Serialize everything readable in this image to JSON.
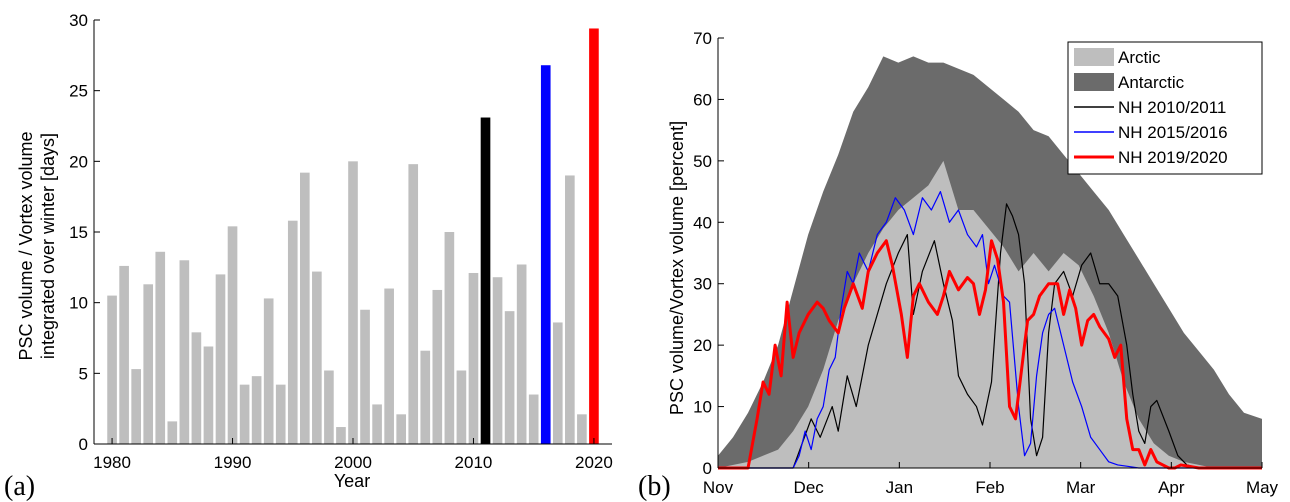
{
  "chart_data": [
    {
      "type": "bar",
      "panel_label": "(a)",
      "xlabel": "Year",
      "ylabel_line1": "PSC volume / Vortex volume",
      "ylabel_line2": "integrated over winter [days]",
      "ylim": [
        0,
        30
      ],
      "yticks": [
        0,
        5,
        10,
        15,
        20,
        25,
        30
      ],
      "xticks": [
        1980,
        1990,
        2000,
        2010,
        2020
      ],
      "xlim": [
        1978.5,
        2021.5
      ],
      "years": [
        1980,
        1981,
        1982,
        1983,
        1984,
        1985,
        1986,
        1987,
        1988,
        1989,
        1990,
        1991,
        1992,
        1993,
        1994,
        1995,
        1996,
        1997,
        1998,
        1999,
        2000,
        2001,
        2002,
        2003,
        2004,
        2005,
        2006,
        2007,
        2008,
        2009,
        2010,
        2011,
        2012,
        2013,
        2014,
        2015,
        2016,
        2017,
        2018,
        2019,
        2020
      ],
      "values": [
        10.5,
        12.6,
        5.3,
        11.3,
        13.6,
        1.6,
        13.0,
        7.9,
        6.9,
        12.0,
        15.4,
        4.2,
        4.8,
        10.3,
        4.2,
        15.8,
        19.2,
        12.2,
        5.2,
        1.2,
        20.0,
        9.5,
        2.8,
        11.0,
        2.1,
        19.8,
        6.6,
        10.9,
        15.0,
        5.2,
        12.1,
        23.1,
        11.8,
        9.4,
        12.7,
        3.5,
        26.8,
        8.6,
        19.0,
        2.1,
        29.4
      ],
      "highlight": {
        "2011": "#000000",
        "2016": "#0000ff",
        "2020": "#ff0000"
      },
      "bar_color": "#bebebe",
      "grid": false
    },
    {
      "type": "area",
      "panel_label": "(b)",
      "ylabel": "PSC volume/Vortex volume [percent]",
      "ylim": [
        0,
        70
      ],
      "yticks": [
        0,
        10,
        20,
        30,
        40,
        50,
        60,
        70
      ],
      "xticks": [
        "Nov",
        "Dec",
        "Jan",
        "Feb",
        "Mar",
        "Apr",
        "May"
      ],
      "xlim_days": [
        0,
        181
      ],
      "legend_position": "top-right",
      "series": [
        {
          "name": "Arctic",
          "kind": "area",
          "color": "#bebebe",
          "x": [
            0,
            10,
            20,
            25,
            30,
            35,
            40,
            45,
            50,
            55,
            60,
            65,
            70,
            75,
            80,
            85,
            90,
            95,
            100,
            105,
            110,
            115,
            120,
            125,
            130,
            135,
            140,
            145,
            150,
            155,
            160,
            165,
            170,
            175,
            181
          ],
          "y": [
            0,
            1,
            3,
            6,
            10,
            16,
            24,
            30,
            35,
            39,
            42,
            44,
            46,
            50,
            42,
            42,
            39,
            36,
            32,
            35,
            32,
            35,
            33,
            28,
            22,
            14,
            8,
            4,
            2,
            1,
            0.5,
            0,
            0,
            0,
            0
          ]
        },
        {
          "name": "Antarctic",
          "kind": "area",
          "color": "#6b6b6b",
          "x": [
            0,
            5,
            10,
            15,
            20,
            25,
            30,
            35,
            40,
            45,
            50,
            55,
            60,
            65,
            70,
            75,
            80,
            85,
            90,
            95,
            100,
            105,
            110,
            115,
            120,
            125,
            130,
            135,
            140,
            145,
            150,
            155,
            160,
            165,
            170,
            175,
            181
          ],
          "y": [
            2,
            5,
            9,
            14,
            20,
            29,
            38,
            45,
            51,
            58,
            62,
            67,
            66,
            67,
            66,
            66,
            65,
            64,
            62,
            60,
            58,
            55,
            54,
            51,
            48,
            45,
            42,
            38,
            34,
            30,
            26,
            22,
            19,
            16,
            12,
            9,
            8
          ]
        },
        {
          "name": "NH 2010/2011",
          "kind": "line",
          "color": "#000000",
          "x": [
            0,
            25,
            28,
            31,
            34,
            38,
            40,
            43,
            46,
            50,
            53,
            56,
            60,
            63,
            65,
            68,
            72,
            75,
            78,
            80,
            83,
            86,
            88,
            91,
            94,
            96,
            98,
            100,
            102,
            104,
            106,
            108,
            110,
            112,
            115,
            118,
            121,
            124,
            127,
            130,
            133,
            136,
            138,
            140,
            142,
            144,
            146,
            150,
            153,
            156,
            160,
            165,
            181
          ],
          "y": [
            0,
            0,
            4,
            8,
            5,
            10,
            6,
            15,
            10,
            20,
            25,
            30,
            35,
            38,
            25,
            32,
            37,
            30,
            24,
            15,
            12,
            10,
            7,
            14,
            35,
            43,
            41,
            38,
            30,
            8,
            2,
            5,
            22,
            30,
            32,
            28,
            33,
            35,
            30,
            30,
            28,
            20,
            12,
            6,
            4,
            10,
            11,
            6,
            2,
            0.5,
            0,
            0,
            0
          ]
        },
        {
          "name": "NH 2015/2016",
          "kind": "line",
          "color": "#0000ff",
          "x": [
            0,
            25,
            27,
            29,
            31,
            33,
            35,
            37,
            39,
            41,
            43,
            45,
            47,
            50,
            53,
            56,
            59,
            62,
            65,
            68,
            71,
            74,
            77,
            80,
            83,
            86,
            88,
            90,
            92,
            95,
            97,
            100,
            102,
            104,
            106,
            108,
            110,
            112,
            115,
            118,
            121,
            124,
            127,
            130,
            133,
            136,
            140,
            145,
            150,
            181
          ],
          "y": [
            0,
            0,
            2,
            6,
            3,
            8,
            10,
            16,
            18,
            26,
            32,
            30,
            35,
            32,
            38,
            40,
            44,
            42,
            38,
            44,
            42,
            45,
            40,
            42,
            38,
            36,
            38,
            30,
            33,
            28,
            27,
            10,
            2,
            4,
            15,
            22,
            25,
            26,
            20,
            14,
            10,
            5,
            3,
            1,
            0.5,
            0.3,
            0,
            0,
            0,
            0
          ]
        },
        {
          "name": "NH 2019/2020",
          "kind": "line",
          "color": "#ff0000",
          "width": 3,
          "x": [
            0,
            5,
            10,
            13,
            15,
            17,
            19,
            21,
            23,
            25,
            27,
            30,
            33,
            35,
            37,
            40,
            42,
            45,
            48,
            50,
            53,
            56,
            58,
            61,
            63,
            65,
            67,
            70,
            73,
            75,
            77,
            80,
            83,
            85,
            87,
            89,
            91,
            93,
            95,
            97,
            99,
            101,
            103,
            105,
            107,
            110,
            113,
            115,
            117,
            119,
            121,
            123,
            125,
            127,
            130,
            132,
            134,
            136,
            138,
            140,
            142,
            144,
            146,
            148,
            150,
            152,
            154,
            160,
            165,
            170,
            175,
            181
          ],
          "y": [
            0,
            0,
            0,
            8,
            14,
            12,
            20,
            15,
            27,
            18,
            22,
            25,
            27,
            26,
            24,
            22,
            26,
            30,
            26,
            32,
            35,
            37,
            33,
            25,
            18,
            28,
            30,
            27,
            25,
            28,
            32,
            29,
            31,
            30,
            25,
            29,
            37,
            34,
            27,
            10,
            8,
            16,
            24,
            25,
            28,
            30,
            30,
            25,
            29,
            26,
            20,
            24,
            25,
            23,
            21,
            18,
            20,
            8,
            3,
            3,
            0.5,
            3,
            1,
            0.5,
            0,
            0,
            0.5,
            0,
            0,
            0,
            0,
            0
          ]
        }
      ]
    }
  ]
}
